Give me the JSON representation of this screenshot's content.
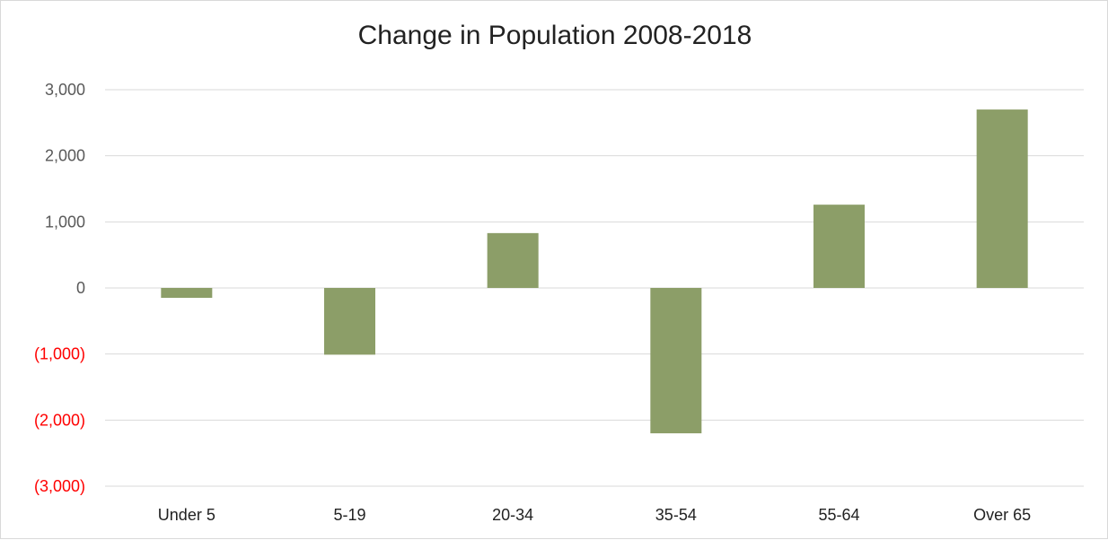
{
  "chart_data": {
    "type": "bar",
    "title": "Change in Population 2008-2018",
    "xlabel": "",
    "ylabel": "",
    "categories": [
      "Under 5",
      "5-19",
      "20-34",
      "35-54",
      "55-64",
      "Over 65"
    ],
    "values": [
      -150,
      -1010,
      830,
      -2200,
      1260,
      2700
    ],
    "ylim": [
      -3000,
      3000
    ],
    "yticks": [
      3000,
      2000,
      1000,
      0,
      -1000,
      -2000,
      -3000
    ],
    "ytick_labels": [
      "3,000",
      "2,000",
      "1,000",
      "0",
      "(1,000)",
      "(2,000)",
      "(3,000)"
    ],
    "grid": true,
    "legend": "none",
    "colors": {
      "bar": "#8c9e68",
      "gridline": "#d9d9d9",
      "tick_positive": "#595959",
      "tick_negative": "#ff0000"
    }
  }
}
